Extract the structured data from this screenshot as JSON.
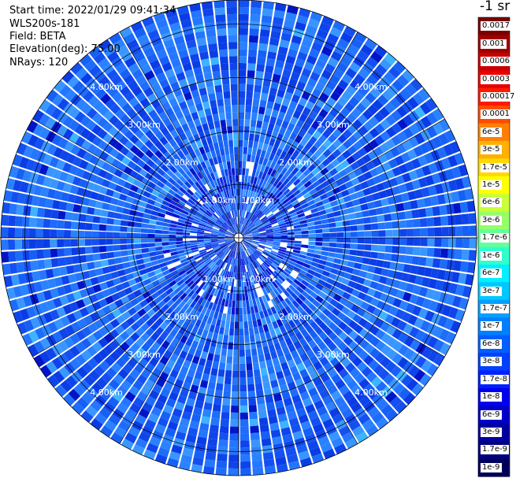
{
  "info": {
    "start_time": "Start time: 2022/01/29 09:41:34",
    "instrument": "WLS200s-181",
    "field": "Field: BETA",
    "elevation": "Elevation(deg): 75.00",
    "nrays": "NRays: 120"
  },
  "chart_data": {
    "type": "heatmap",
    "subtype": "polar-ppi",
    "field": "BETA",
    "n_rays": 120,
    "range_rings_km": [
      1.0,
      2.0,
      3.0,
      4.0
    ],
    "range_ring_labels": [
      "1.00km",
      "2.00km",
      "3.00km",
      "4.00km"
    ],
    "max_range_km": 4.45,
    "colorbar": {
      "title": "-1 sr",
      "scale": "log",
      "tick_labels": [
        "0.0017",
        "0.001",
        "0.0006",
        "0.0003",
        "0.00017",
        "0.0001",
        "6e-5",
        "3e-5",
        "1.7e-5",
        "1e-5",
        "6e-6",
        "3e-6",
        "1.7e-6",
        "1e-6",
        "6e-7",
        "3e-7",
        "1.7e-7",
        "1e-7",
        "6e-8",
        "3e-8",
        "1.7e-8",
        "1e-8",
        "6e-9",
        "3e-9",
        "1.7e-9",
        "1e-9"
      ],
      "colors": [
        "#7a0000",
        "#a00000",
        "#c80000",
        "#e80000",
        "#ff1a00",
        "#ff4c00",
        "#ff8000",
        "#ffb000",
        "#ffd800",
        "#ffff00",
        "#c8ff38",
        "#96ff68",
        "#64ff98",
        "#30ffcc",
        "#00f0ff",
        "#00c8ff",
        "#00a0ff",
        "#0080ff",
        "#0060ff",
        "#0040ff",
        "#0020ff",
        "#0000f0",
        "#0000c8",
        "#0000a0",
        "#000080",
        "#00005a"
      ],
      "label_text_colors": [
        "#ffffff",
        "#ffffff",
        "#ffffff",
        "#ffffff",
        "#000000",
        "#000000",
        "#000000",
        "#000000",
        "#000000",
        "#000000",
        "#000000",
        "#000000",
        "#000000",
        "#000000",
        "#000000",
        "#000000",
        "#000000",
        "#000000",
        "#000000",
        "#000000",
        "#000000",
        "#ffffff",
        "#ffffff",
        "#ffffff",
        "#ffffff",
        "#ffffff"
      ]
    },
    "dominant_value_range": [
      "1e-8",
      "6e-8"
    ]
  }
}
